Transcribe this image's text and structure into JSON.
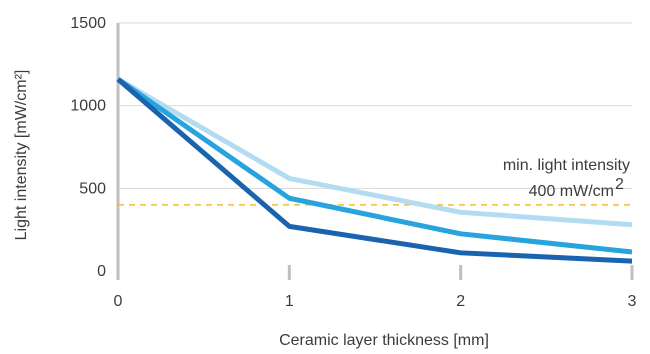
{
  "chart_data": {
    "type": "line",
    "x": [
      0,
      1,
      2,
      3
    ],
    "x_ticks": [
      "0",
      "1",
      "2",
      "3"
    ],
    "y_ticks": [
      "0",
      "500",
      "1000",
      "1500"
    ],
    "xlim": [
      0,
      3
    ],
    "ylim": [
      0,
      1500
    ],
    "xlabel": "Ceramic layer thickness [mm]",
    "ylabel": "Light intensity [mW/cm²]",
    "grid": "horizontal",
    "series": [
      {
        "values": [
          1160,
          560,
          355,
          280
        ],
        "color": "#b3dcf2"
      },
      {
        "values": [
          1160,
          440,
          225,
          115
        ],
        "color": "#27a3dd"
      },
      {
        "values": [
          1160,
          270,
          110,
          60
        ],
        "color": "#1a63ae"
      }
    ],
    "threshold": {
      "value": 400,
      "color": "#f2be32",
      "label_line1": "min. light intensity",
      "label_value": "400 mW/cm",
      "label_sup": "2"
    }
  }
}
